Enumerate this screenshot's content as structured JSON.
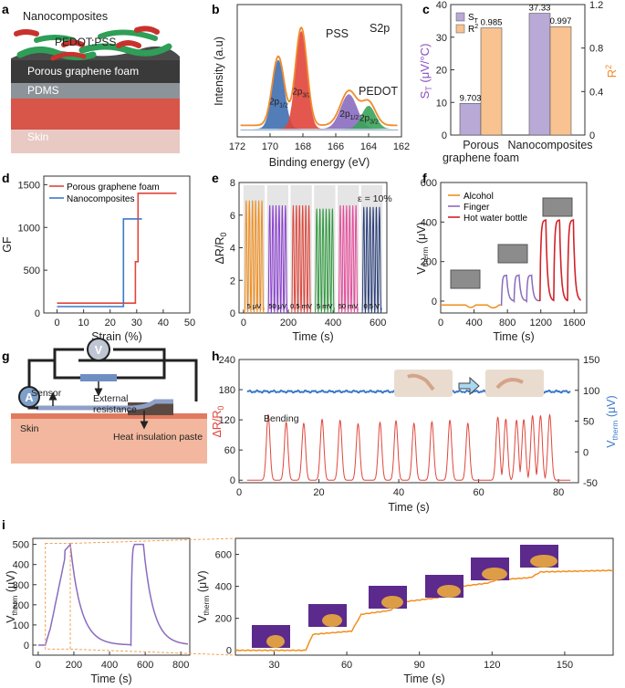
{
  "panels": {
    "a": "a",
    "b": "b",
    "c": "c",
    "d": "d",
    "e": "e",
    "f": "f",
    "g": "g",
    "h": "h",
    "i": "i"
  },
  "panel_a": {
    "layers": [
      "Nanocomposites",
      "PEDOT:PSS",
      "Porous graphene foam",
      "PDMS",
      "Skin"
    ],
    "colors": {
      "pedot": "#2f9e57",
      "pss": "#c8322d",
      "foam": "#3a3a3a",
      "pdms": "#8c9399",
      "skin": "#d8554a"
    }
  },
  "panel_g": {
    "voltmeter": "V",
    "ammeter": "A",
    "labels": [
      "External resistance",
      "Sensor",
      "Skin",
      "Heat insulation paste"
    ]
  },
  "chart_data": [
    {
      "panel": "b",
      "type": "line",
      "title": "S2p",
      "xlabel": "Binding energy (eV)",
      "ylabel": "Intensity (a.u)",
      "xlim": [
        172,
        162
      ],
      "xticks": [
        "172",
        "170",
        "168",
        "166",
        "164",
        "162"
      ],
      "peaks": [
        {
          "label": "2p",
          "sub": "1/2",
          "x": 169.5,
          "color": "#3f6fb0"
        },
        {
          "label": "2p",
          "sub": "3/2",
          "x": 168.1,
          "color": "#e0453b"
        },
        {
          "label": "2p",
          "sub": "1/2",
          "x": 165.2,
          "color": "#8a6bbf"
        },
        {
          "label": "2p",
          "sub": "3/2",
          "x": 164.0,
          "color": "#3aa35a"
        }
      ],
      "annotations": [
        "PSS",
        "PEDOT"
      ],
      "envelope_color": "#f08a2a"
    },
    {
      "panel": "c",
      "type": "bar",
      "categories": [
        "Porous graphene foam",
        "Nanocomposites"
      ],
      "series": [
        {
          "name": "S",
          "sub": "T",
          "values": [
            9.703,
            37.33
          ],
          "color": "#b9a9d6"
        },
        {
          "name": "R",
          "sup": "2",
          "values": [
            0.985,
            0.997
          ],
          "color": "#f8c291"
        }
      ],
      "ylabel_left": "S",
      "ylabel_left_sub": "T",
      "ylabel_left_unit": " (μV/°C)",
      "ylabel_right": "R",
      "ylabel_right_sup": "2",
      "ylim_left": [
        0,
        40
      ],
      "ylim_right": [
        0,
        1.2
      ],
      "yticks_left": [
        "0",
        "10",
        "20",
        "30",
        "40"
      ],
      "yticks_right": [
        "0",
        "0.4",
        "0.8",
        "1.2"
      ],
      "value_labels": [
        "9.703",
        "37.33",
        "0.985",
        "0.997"
      ]
    },
    {
      "panel": "d",
      "type": "line",
      "xlabel": "Strain (%)",
      "ylabel": "GF",
      "xlim": [
        -5,
        50
      ],
      "ylim": [
        0,
        1600
      ],
      "xticks": [
        "0",
        "10",
        "20",
        "30",
        "40",
        "50"
      ],
      "yticks": [
        "0",
        "500",
        "1000",
        "1500"
      ],
      "series": [
        {
          "name": "Porous graphene foam",
          "color": "#e0453b",
          "x": [
            0,
            29.5,
            29.5,
            30.5,
            30.5,
            45
          ],
          "y": [
            115,
            115,
            600,
            600,
            1400,
            1400
          ]
        },
        {
          "name": "Nanocomposites",
          "color": "#3b79c9",
          "x": [
            0,
            25,
            25,
            32
          ],
          "y": [
            75,
            75,
            1100,
            1100
          ]
        }
      ]
    },
    {
      "panel": "e",
      "type": "line",
      "xlabel": "Time (s)",
      "ylabel": "ΔR/R",
      "ylabel_sub": "0",
      "xlim": [
        -20,
        640
      ],
      "ylim": [
        0,
        8
      ],
      "xticks": [
        "0",
        "200",
        "400",
        "600"
      ],
      "yticks": [
        "0",
        "2",
        "4",
        "6",
        "8"
      ],
      "annotation": "ε = 10%",
      "segments": [
        {
          "label": "5 μV",
          "color": "#f28e1c",
          "peak": 6.9
        },
        {
          "label": "50 μV",
          "color": "#8b3fd1",
          "peak": 6.6
        },
        {
          "label": "0.5 mV",
          "color": "#e0453b",
          "peak": 6.6
        },
        {
          "label": "5 mV",
          "color": "#2e9a3e",
          "peak": 6.4
        },
        {
          "label": "50 mV",
          "color": "#e84a9c",
          "peak": 6.6
        },
        {
          "label": "0.5 V",
          "color": "#2a3f7a",
          "peak": 6.5
        }
      ]
    },
    {
      "panel": "f",
      "type": "line",
      "xlabel": "Time (s)",
      "ylabel": "V",
      "ylabel_sub": "therm",
      "ylabel_unit": " (μV)",
      "xlim": [
        0,
        1750
      ],
      "ylim": [
        -60,
        600
      ],
      "xticks": [
        "0",
        "400",
        "800",
        "1200",
        "1600"
      ],
      "yticks": [
        "0",
        "200",
        "400",
        "600"
      ],
      "series": [
        {
          "name": "Alcohol",
          "color": "#f28e1c"
        },
        {
          "name": "Finger",
          "color": "#8a6bbf"
        },
        {
          "name": "Hot water bottle",
          "color": "#d1232a"
        }
      ]
    },
    {
      "panel": "h",
      "type": "line",
      "xlabel": "Time (s)",
      "ylabel_left": "ΔR/R",
      "ylabel_left_sub": "0",
      "ylabel_right": "V",
      "ylabel_right_sub": "therm",
      "ylabel_right_unit": " (μV)",
      "xlim": [
        0,
        85
      ],
      "ylim_left": [
        -5,
        240
      ],
      "ylim_right": [
        -50,
        150
      ],
      "xticks": [
        "0",
        "20",
        "40",
        "60",
        "80"
      ],
      "yticks_left": [
        "0",
        "60",
        "120",
        "180",
        "240"
      ],
      "yticks_right": [
        "-50",
        "0",
        "50",
        "100",
        "150"
      ],
      "annotation": "Bending",
      "peaks_x": [
        7.3,
        11.8,
        16.2,
        20.8,
        25.3,
        29.8,
        35.3,
        39.3,
        43.8,
        48.3,
        52.8,
        57.3,
        64.8,
        66.8,
        69.5,
        71.3,
        73.5,
        75.5,
        77.8
      ],
      "peaks_y": [
        130,
        115,
        113,
        121,
        119,
        112,
        115,
        118,
        113,
        116,
        119,
        113,
        125,
        121,
        119,
        120,
        128,
        128,
        130
      ],
      "series": [
        {
          "name": "ΔR/R0",
          "color": "#e0453b"
        },
        {
          "name": "Vtherm",
          "color": "#3b79c9",
          "level": 98
        }
      ]
    },
    {
      "panel": "i-left",
      "type": "line",
      "xlabel": "Time (s)",
      "ylabel": "V",
      "ylabel_sub": "therm",
      "ylabel_unit": " (μV)",
      "xlim": [
        -30,
        850
      ],
      "ylim": [
        -50,
        530
      ],
      "xticks": [
        "0",
        "200",
        "400",
        "600",
        "800"
      ],
      "yticks": [
        "0",
        "100",
        "200",
        "300",
        "400",
        "500"
      ],
      "color": "#8a6bbf"
    },
    {
      "panel": "i-right",
      "type": "line",
      "xlabel": "Time (s)",
      "ylabel": "V",
      "ylabel_sub": "therm",
      "ylabel_unit": " (μV)",
      "xlim": [
        14,
        170
      ],
      "ylim": [
        -30,
        700
      ],
      "xticks": [
        "30",
        "60",
        "90",
        "120",
        "150"
      ],
      "yticks": [
        "0",
        "200",
        "400",
        "600"
      ],
      "color": "#f28e1c",
      "steps": [
        {
          "x": 14,
          "y": 0
        },
        {
          "x": 43,
          "y": 0
        },
        {
          "x": 46,
          "y": 100
        },
        {
          "x": 62,
          "y": 120
        },
        {
          "x": 66,
          "y": 225
        },
        {
          "x": 78,
          "y": 250
        },
        {
          "x": 82,
          "y": 300
        },
        {
          "x": 98,
          "y": 330
        },
        {
          "x": 102,
          "y": 390
        },
        {
          "x": 118,
          "y": 420
        },
        {
          "x": 122,
          "y": 440
        },
        {
          "x": 136,
          "y": 455
        },
        {
          "x": 140,
          "y": 490
        },
        {
          "x": 170,
          "y": 500
        }
      ]
    }
  ]
}
